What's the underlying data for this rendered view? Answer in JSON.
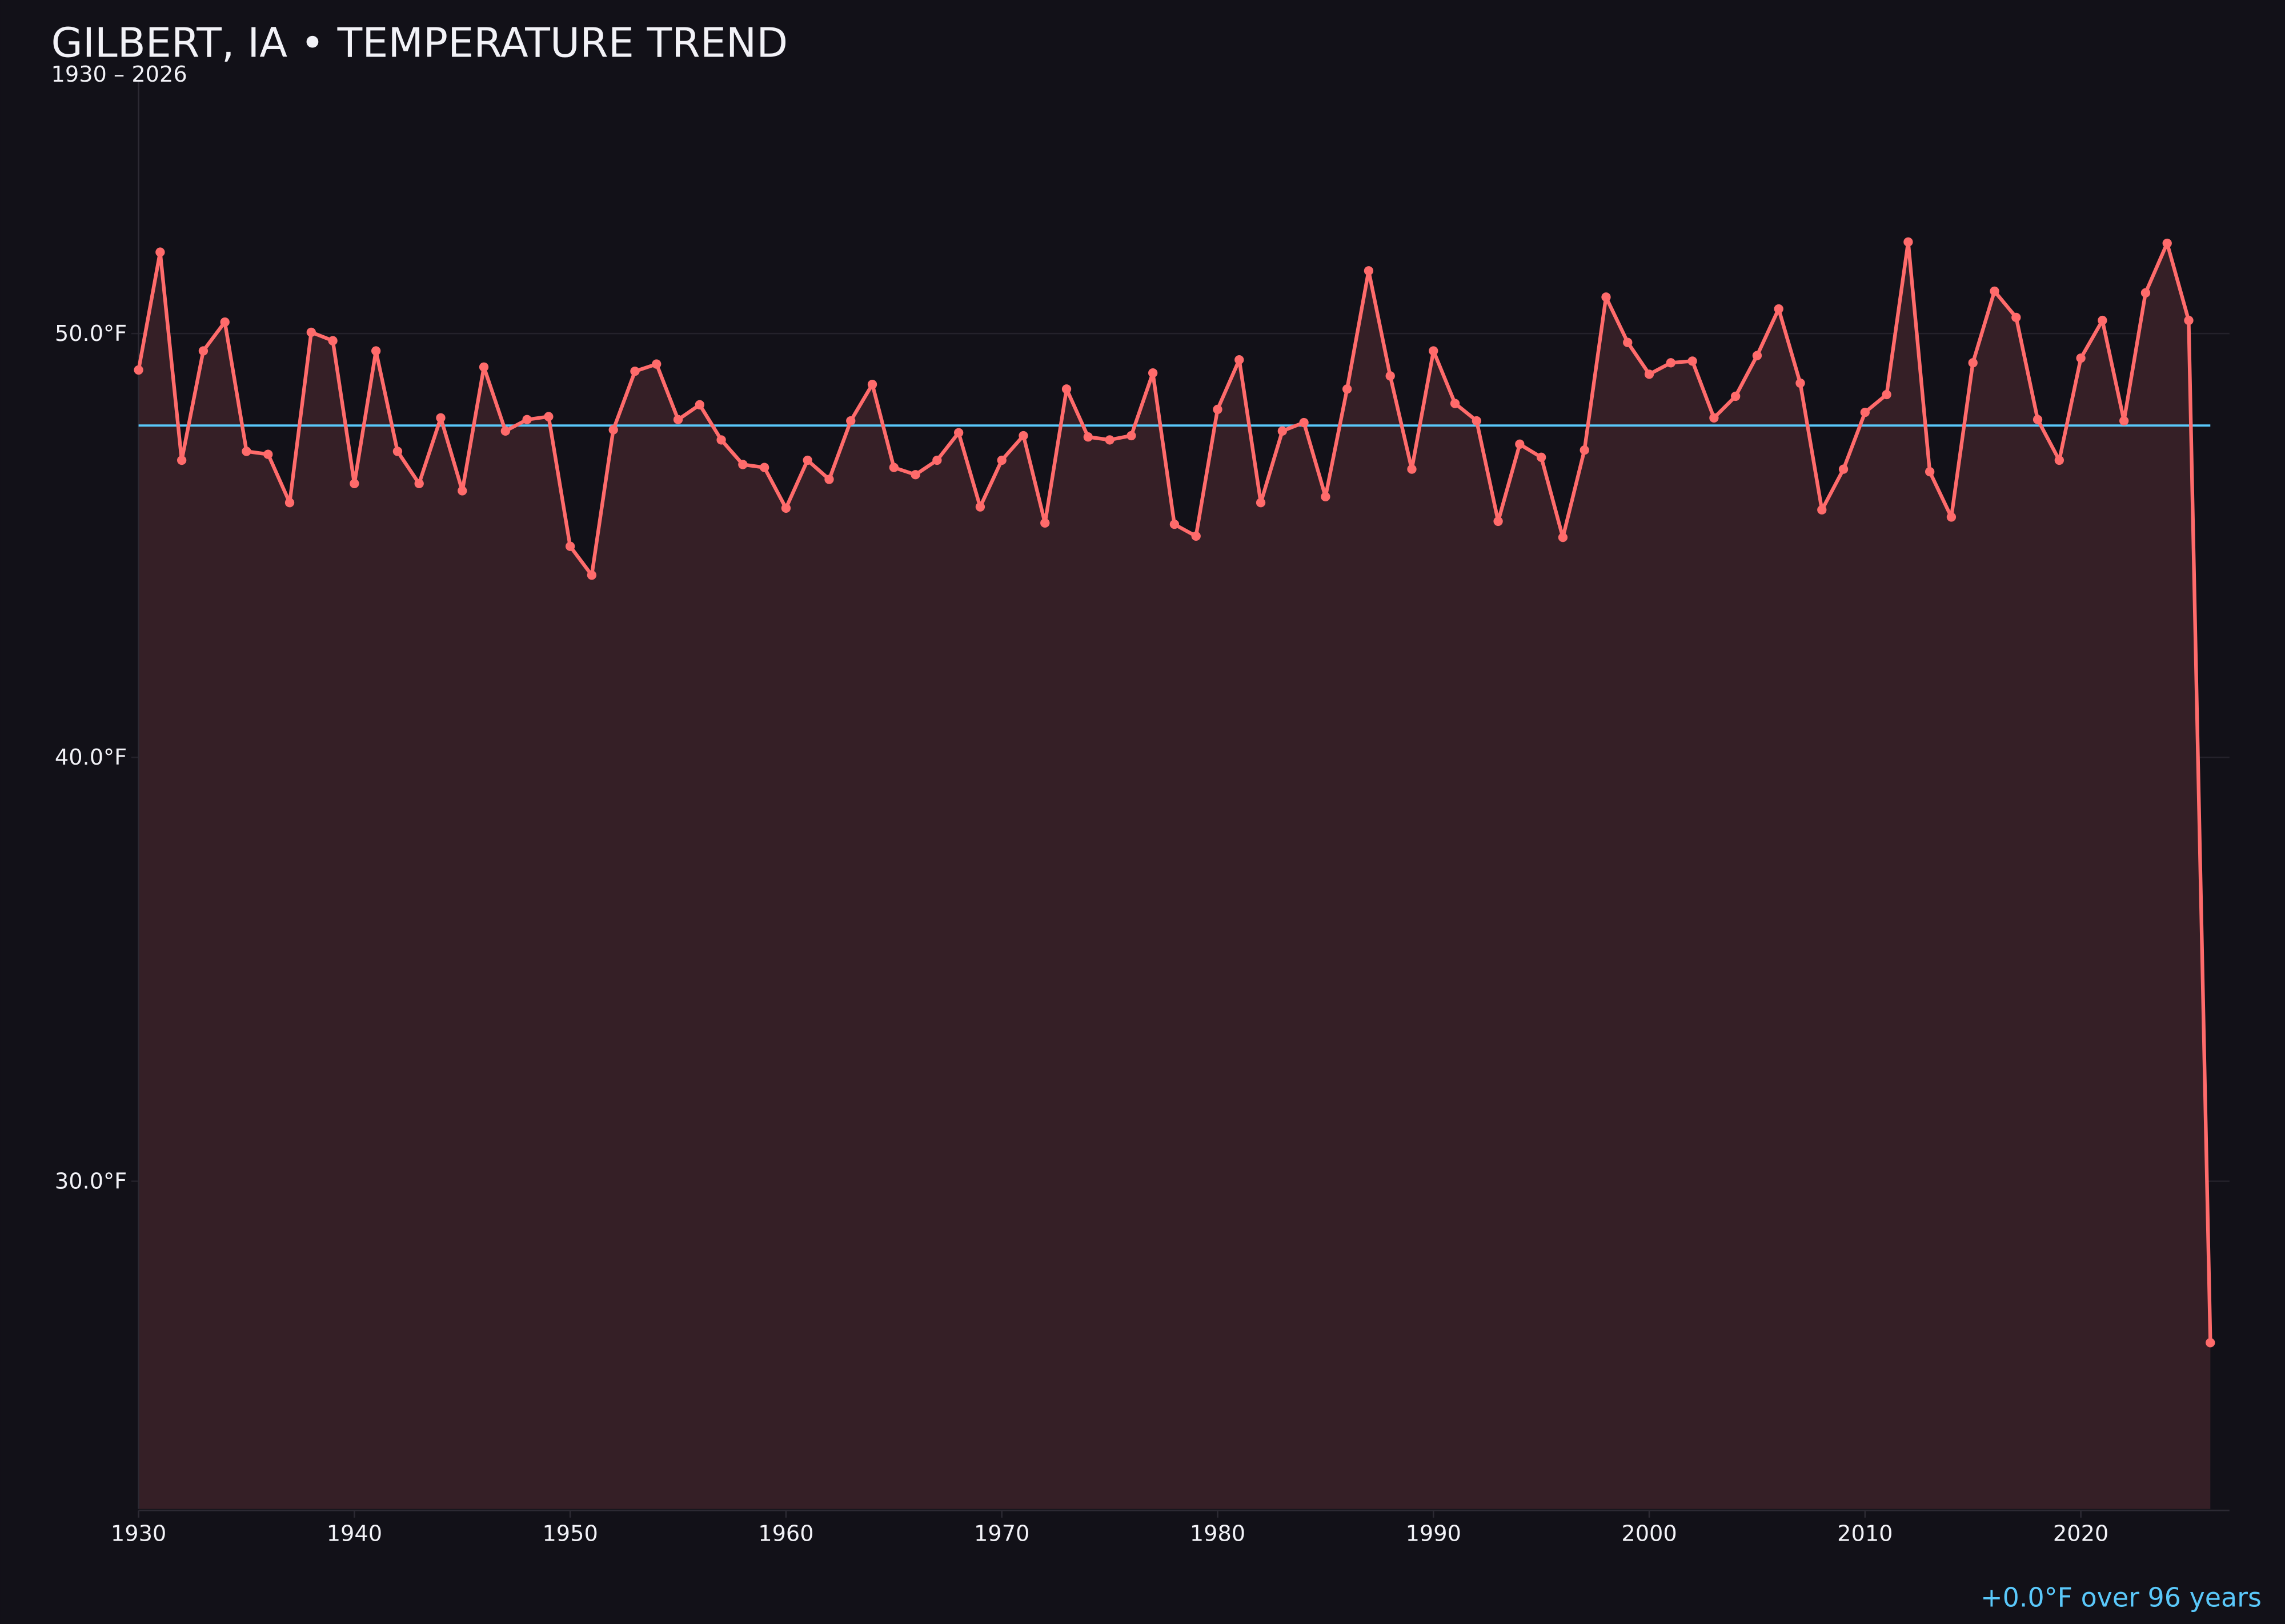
{
  "colors": {
    "background": "#121118",
    "line": "#ff6b6b",
    "fill": "#351f26",
    "mean": "#5ac8fa",
    "text": "#f2f2f7",
    "grid": "#24222b",
    "trend_text": "#5ac8fa"
  },
  "chart_data": {
    "type": "line",
    "title": "GILBERT, IA • TEMPERATURE TREND",
    "subtitle": "1930 – 2026",
    "annotation": "+0.0°F over 96 years",
    "xlabel": "",
    "ylabel": "",
    "xlim": [
      1930,
      2027
    ],
    "ylim": [
      22.3,
      56
    ],
    "x_ticks": [
      {
        "value": 1930,
        "label": "1930"
      },
      {
        "value": 1940,
        "label": "1940"
      },
      {
        "value": 1950,
        "label": "1950"
      },
      {
        "value": 1960,
        "label": "1960"
      },
      {
        "value": 1970,
        "label": "1970"
      },
      {
        "value": 1980,
        "label": "1980"
      },
      {
        "value": 1990,
        "label": "1990"
      },
      {
        "value": 2000,
        "label": "2000"
      },
      {
        "value": 2010,
        "label": "2010"
      },
      {
        "value": 2020,
        "label": "2020"
      }
    ],
    "y_ticks": [
      {
        "value": 30,
        "label": "30.0°F"
      },
      {
        "value": 40,
        "label": "40.0°F"
      },
      {
        "value": 50,
        "label": "50.0°F"
      }
    ],
    "mean": 47.83,
    "grid": true,
    "x": [
      1930,
      1931,
      1932,
      1933,
      1934,
      1935,
      1936,
      1937,
      1938,
      1939,
      1940,
      1941,
      1942,
      1943,
      1944,
      1945,
      1946,
      1947,
      1948,
      1949,
      1950,
      1951,
      1952,
      1953,
      1954,
      1955,
      1956,
      1957,
      1958,
      1959,
      1960,
      1961,
      1962,
      1963,
      1964,
      1965,
      1966,
      1967,
      1968,
      1969,
      1970,
      1971,
      1972,
      1973,
      1974,
      1975,
      1976,
      1977,
      1978,
      1979,
      1980,
      1981,
      1982,
      1983,
      1984,
      1985,
      1986,
      1987,
      1988,
      1989,
      1990,
      1991,
      1992,
      1993,
      1994,
      1995,
      1996,
      1997,
      1998,
      1999,
      2000,
      2001,
      2002,
      2003,
      2004,
      2005,
      2006,
      2007,
      2008,
      2009,
      2010,
      2011,
      2012,
      2013,
      2014,
      2015,
      2016,
      2017,
      2018,
      2019,
      2020,
      2021,
      2022,
      2023,
      2024,
      2025,
      2026
    ],
    "values": [
      49.14,
      51.92,
      47.01,
      49.59,
      50.27,
      47.22,
      47.15,
      46.01,
      50.03,
      49.83,
      46.46,
      49.59,
      47.22,
      46.46,
      48.01,
      46.29,
      49.21,
      47.7,
      47.97,
      48.04,
      44.98,
      44.3,
      47.73,
      49.11,
      49.28,
      47.97,
      48.32,
      47.49,
      46.91,
      46.84,
      45.88,
      47.01,
      46.56,
      47.94,
      48.8,
      46.84,
      46.67,
      47.01,
      47.66,
      45.91,
      47.01,
      47.59,
      45.53,
      48.69,
      47.56,
      47.49,
      47.59,
      49.07,
      45.5,
      45.22,
      48.21,
      49.38,
      46.01,
      47.7,
      47.9,
      46.15,
      48.69,
      51.48,
      49.0,
      46.8,
      49.59,
      48.35,
      47.94,
      45.57,
      47.39,
      47.08,
      45.19,
      47.25,
      50.86,
      49.79,
      49.04,
      49.31,
      49.35,
      48.01,
      48.52,
      49.48,
      50.58,
      48.83,
      45.84,
      46.8,
      48.14,
      48.56,
      52.16,
      46.74,
      45.67,
      49.31,
      51.0,
      50.38,
      47.97,
      47.01,
      49.42,
      50.31,
      47.94,
      50.96,
      52.13,
      50.31,
      26.19
    ]
  }
}
